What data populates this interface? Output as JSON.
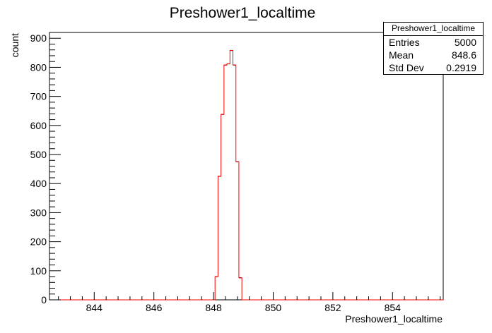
{
  "chart_data": {
    "type": "histogram",
    "title": "Preshower1_localtime",
    "xlabel": "Preshower1_localtime",
    "ylabel": "count",
    "xlim": [
      842.5,
      855.7
    ],
    "ylim": [
      0,
      920
    ],
    "xticks": [
      844,
      846,
      848,
      850,
      852,
      854
    ],
    "yticks": [
      0,
      100,
      200,
      300,
      400,
      500,
      600,
      700,
      800,
      900
    ],
    "bin_width": 0.1,
    "bins": [
      {
        "x": 848.1,
        "value": 80
      },
      {
        "x": 848.2,
        "value": 425
      },
      {
        "x": 848.3,
        "value": 638
      },
      {
        "x": 848.4,
        "value": 808
      },
      {
        "x": 848.5,
        "value": 812
      },
      {
        "x": 848.6,
        "value": 858
      },
      {
        "x": 848.7,
        "value": 808
      },
      {
        "x": 848.8,
        "value": 475
      },
      {
        "x": 848.9,
        "value": 76
      }
    ],
    "grid": false,
    "line_color": "#ff0000",
    "marker_color": "#000000",
    "stats": {
      "title": "Preshower1_localtime",
      "rows": [
        {
          "label": "Entries",
          "value": "5000"
        },
        {
          "label": "Mean",
          "value": "848.6"
        },
        {
          "label": "Std Dev",
          "value": "0.2919"
        }
      ]
    }
  }
}
